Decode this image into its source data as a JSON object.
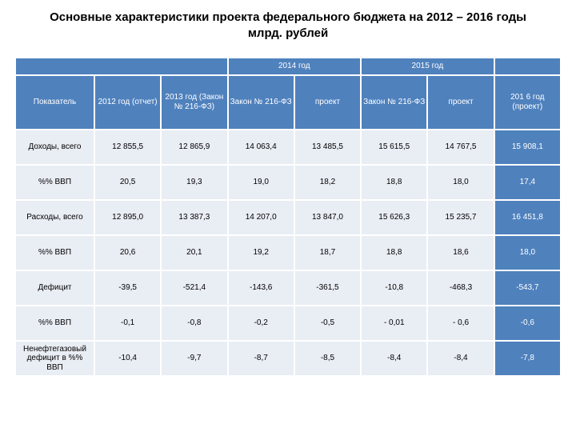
{
  "title_line1": "Основные характеристики проекта федерального бюджета на 2012 – 2016 годы",
  "title_line2": "млрд. рублей",
  "year_2014": "2014 год",
  "year_2015": "2015 год",
  "head": {
    "indicator": "Показатель",
    "c2012": "2012 год (отчет)",
    "c2013": "2013 год (Закон № 216-ФЗ)",
    "law14": "Закон № 216-ФЗ",
    "proj14": "проект",
    "law15": "Закон № 216-ФЗ",
    "proj15": "проект",
    "c2016": "201 6 год (проект)"
  },
  "rows": [
    {
      "label": "Доходы, всего",
      "v": [
        "12 855,5",
        "12 865,9",
        "14 063,4",
        "13 485,5",
        "15 615,5",
        "14 767,5",
        "15 908,1"
      ]
    },
    {
      "label": "%% ВВП",
      "v": [
        "20,5",
        "19,3",
        "19,0",
        "18,2",
        "18,8",
        "18,0",
        "17,4"
      ]
    },
    {
      "label": "Расходы, всего",
      "v": [
        "12 895,0",
        "13 387,3",
        "14 207,0",
        "13 847,0",
        "15 626,3",
        "15 235,7",
        "16 451,8"
      ]
    },
    {
      "label": "%% ВВП",
      "v": [
        "20,6",
        "20,1",
        "19,2",
        "18,7",
        "18,8",
        "18,6",
        "18,0"
      ]
    },
    {
      "label": "Дефицит",
      "v": [
        "-39,5",
        "-521,4",
        "-143,6",
        "-361,5",
        "-10,8",
        "-468,3",
        "-543,7"
      ]
    },
    {
      "label": "%% ВВП",
      "v": [
        "-0,1",
        "-0,8",
        "-0,2",
        "-0,5",
        "- 0,01",
        "- 0,6",
        "-0,6"
      ]
    },
    {
      "label": "Ненефтегазовый дефицит в %% ВВП",
      "v": [
        "-10,4",
        "-9,7",
        "-8,7",
        "-8,5",
        "-8,4",
        "-8,4",
        "-7,8"
      ]
    }
  ],
  "colors": {
    "header_bg": "#4f81bd",
    "header_text": "#ffffff",
    "cell_bg": "#e9edf4",
    "cell_text": "#000000",
    "background": "#ffffff"
  }
}
